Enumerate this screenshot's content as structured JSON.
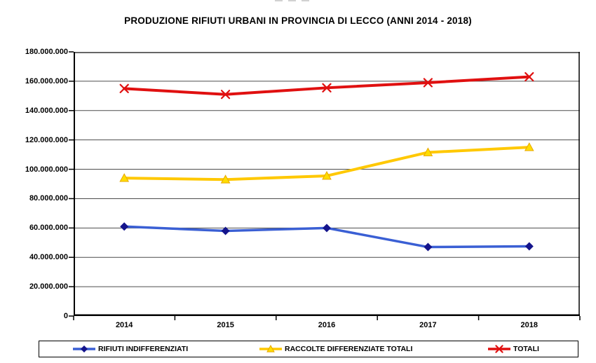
{
  "header": {
    "title": "PRODUZIONE RIFIUTI URBANI IN PROVINCIA DI LECCO (ANNI 2014 - 2018)"
  },
  "chart_data": {
    "type": "line",
    "title": "PRODUZIONE RIFIUTI URBANI IN PROVINCIA DI LECCO (ANNI 2014 - 2018)",
    "categories": [
      "2014",
      "2015",
      "2016",
      "2017",
      "2018"
    ],
    "series": [
      {
        "name": "RIFIUTI INDIFFERENZIATI",
        "marker": "diamond",
        "line_color": "#3A5FD4",
        "line_width": 3.5,
        "marker_color": "#14148C",
        "marker_edge": "#14148C",
        "values": [
          61000000,
          58000000,
          60000000,
          47000000,
          47500000
        ]
      },
      {
        "name": "RACCOLTE DIFFERENZIATE TOTALI",
        "marker": "triangle",
        "line_color": "#FFC800",
        "line_width": 4,
        "marker_color": "#FFDD00",
        "marker_edge": "#E8A800",
        "values": [
          94000000,
          93000000,
          95500000,
          111500000,
          115000000
        ]
      },
      {
        "name": "TOTALI",
        "marker": "x",
        "line_color": "#E01010",
        "line_width": 4,
        "marker_color": "#E01010",
        "marker_edge": "#E01010",
        "values": [
          155000000,
          151000000,
          155500000,
          159000000,
          163000000
        ]
      }
    ],
    "xlabel": "",
    "ylabel": "",
    "ylim": [
      0,
      180000000
    ],
    "yticks": [
      0,
      20000000,
      40000000,
      60000000,
      80000000,
      100000000,
      120000000,
      140000000,
      160000000,
      180000000
    ],
    "ytick_labels": [
      "0",
      "20.000.000",
      "40.000.000",
      "60.000.000",
      "80.000.000",
      "100.000.000",
      "120.000.000",
      "140.000.000",
      "160.000.000",
      "180.000.000"
    ],
    "grid": true,
    "legend_position": "bottom",
    "colors": {
      "gridline": "#4D4D4D",
      "axis": "#000000",
      "border_top": "#666666",
      "background": "#FFFFFF"
    }
  }
}
